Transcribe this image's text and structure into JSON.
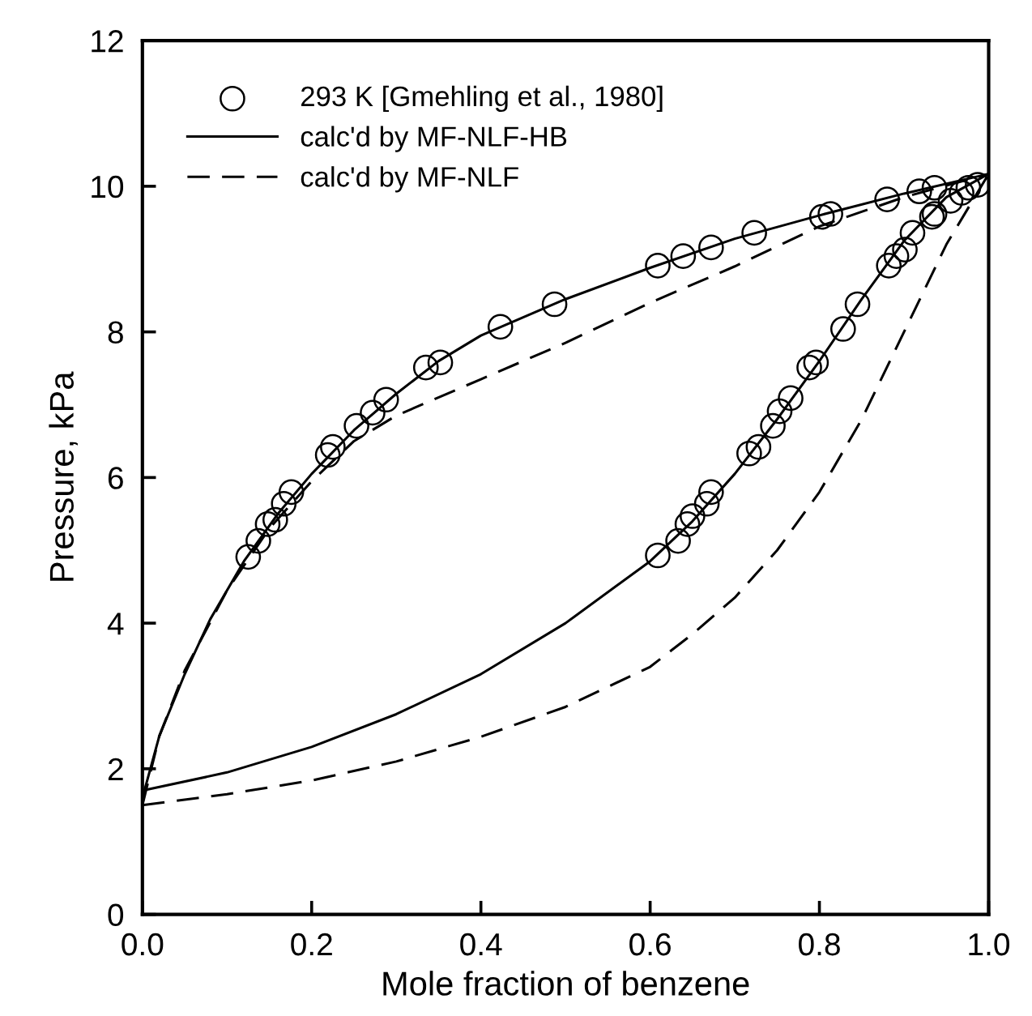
{
  "chart_data": {
    "type": "scatter",
    "xlabel": "Mole fraction of benzene",
    "ylabel": "Pressure, kPa",
    "xlim": [
      0,
      1
    ],
    "ylim": [
      0,
      12
    ],
    "xticks": [
      {
        "value": 0,
        "label": "0.0"
      },
      {
        "value": 0.2,
        "label": "0.2"
      },
      {
        "value": 0.4,
        "label": "0.4"
      },
      {
        "value": 0.6,
        "label": "0.6"
      },
      {
        "value": 0.8,
        "label": "0.8"
      },
      {
        "value": 1,
        "label": "1.0"
      }
    ],
    "yticks": [
      0,
      2,
      4,
      6,
      8,
      10,
      12
    ],
    "grid": false,
    "legend": "top left",
    "series": [
      {
        "name": "293 K [Gmehling et al., 1980]",
        "marker": "circle",
        "color": "#000000",
        "x": [
          0.125,
          0.137,
          0.148,
          0.157,
          0.167,
          0.176,
          0.219,
          0.225,
          0.253,
          0.272,
          0.288,
          0.335,
          0.352,
          0.423,
          0.487,
          0.609,
          0.639,
          0.672,
          0.723,
          0.803,
          0.813,
          0.88,
          0.918,
          0.936,
          0.609,
          0.633,
          0.644,
          0.65,
          0.667,
          0.672,
          0.717,
          0.728,
          0.745,
          0.753,
          0.766,
          0.788,
          0.796,
          0.828,
          0.845,
          0.882,
          0.891,
          0.901,
          0.91,
          0.933,
          0.936,
          0.955,
          0.968,
          0.976,
          0.987
        ],
        "values": [
          4.91,
          5.13,
          5.36,
          5.42,
          5.64,
          5.8,
          6.31,
          6.42,
          6.71,
          6.89,
          7.07,
          7.51,
          7.58,
          8.07,
          8.38,
          8.91,
          9.04,
          9.16,
          9.36,
          9.58,
          9.62,
          9.82,
          9.93,
          9.98,
          4.93,
          5.13,
          5.36,
          5.47,
          5.64,
          5.8,
          6.33,
          6.42,
          6.71,
          6.91,
          7.09,
          7.51,
          7.58,
          8.04,
          8.38,
          8.91,
          9.04,
          9.13,
          9.36,
          9.58,
          9.62,
          9.8,
          9.91,
          9.98,
          10.02
        ]
      },
      {
        "name": "calc'd by MF-NLF-HB",
        "type": "line",
        "line_style": "solid",
        "color": "#000000",
        "x": [
          0,
          0.02,
          0.05,
          0.08,
          0.12,
          0.16,
          0.2,
          0.25,
          0.3,
          0.35,
          0.4,
          0.5,
          0.6,
          0.7,
          0.8,
          0.9,
          1.0,
          null,
          0,
          0.1,
          0.2,
          0.3,
          0.4,
          0.5,
          0.6,
          0.65,
          0.7,
          0.75,
          0.8,
          0.85,
          0.9,
          0.95,
          1.0
        ],
        "values": [
          1.6,
          2.45,
          3.3,
          4.05,
          4.85,
          5.5,
          6.05,
          6.65,
          7.15,
          7.6,
          7.95,
          8.45,
          8.88,
          9.28,
          9.6,
          9.9,
          10.17,
          null,
          1.7,
          1.95,
          2.3,
          2.75,
          3.3,
          4.0,
          4.85,
          5.4,
          6.05,
          6.8,
          7.6,
          8.45,
          9.25,
          9.85,
          10.17
        ]
      },
      {
        "name": "calc'd by MF-NLF",
        "type": "line",
        "line_style": "dashed",
        "color": "#000000",
        "x": [
          0,
          0.02,
          0.05,
          0.1,
          0.15,
          0.2,
          0.25,
          0.3,
          0.4,
          0.5,
          0.6,
          0.7,
          0.8,
          0.9,
          1.0,
          null,
          0,
          0.1,
          0.2,
          0.3,
          0.4,
          0.5,
          0.6,
          0.65,
          0.7,
          0.75,
          0.8,
          0.85,
          0.9,
          0.95,
          1.0
        ],
        "values": [
          1.5,
          2.45,
          3.35,
          4.45,
          5.3,
          5.95,
          6.5,
          6.85,
          7.35,
          7.85,
          8.4,
          8.9,
          9.45,
          9.85,
          10.17,
          null,
          1.5,
          1.65,
          1.84,
          2.1,
          2.44,
          2.85,
          3.4,
          3.85,
          4.35,
          5.0,
          5.8,
          6.8,
          8.0,
          9.2,
          10.17
        ]
      }
    ]
  }
}
